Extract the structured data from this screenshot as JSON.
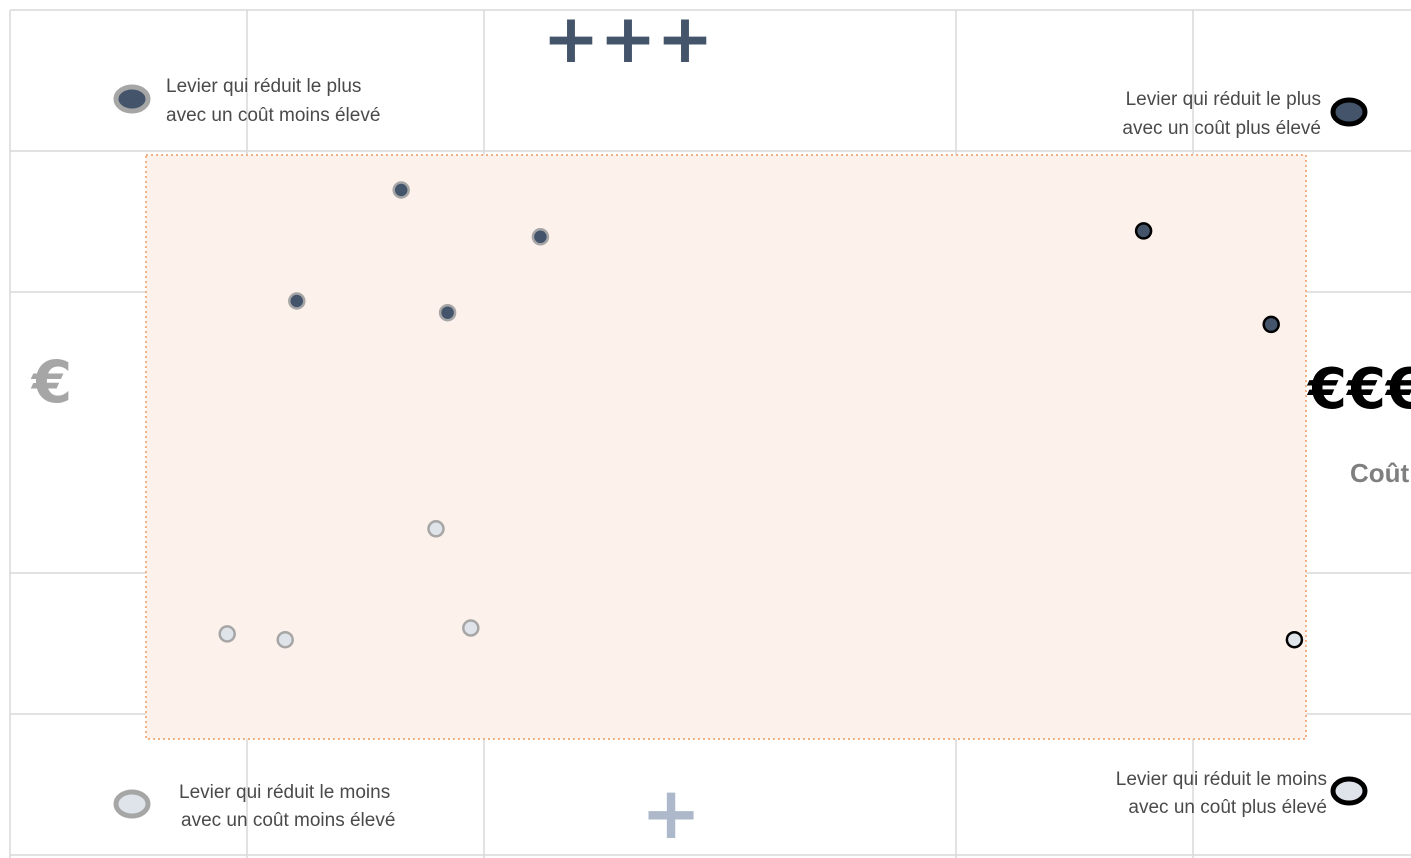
{
  "colors": {
    "dark_point": "#44546a",
    "light_point": "#dfe3ea",
    "zone_fill": "#fdf1ec",
    "zone_border": "#f4b183",
    "grid": "#d9d9d9",
    "x_axis_start": "#e6eaee",
    "x_axis_end": "#000000",
    "y_axis_top": "#8497b0",
    "y_axis_bottom": "#d6dce5",
    "plus_dark": "#44546a",
    "plus_light": "#adb9ca",
    "euro_light": "#a6a6a6",
    "euro_dark": "#000000"
  },
  "labels": {
    "high_impact": "+++",
    "low_impact": "+",
    "low_cost": "€",
    "high_cost": "€€€",
    "cost_axis": "Coût"
  },
  "legend": [
    {
      "line1": "Levier qui réduit le plus",
      "line2": "avec un coût moins élevé",
      "style": "dark-low-cost"
    },
    {
      "line1": "Levier qui réduit le plus",
      "line2": "avec un coût plus élevé",
      "style": "dark-high-cost"
    },
    {
      "line1": "Levier qui réduit le moins",
      "line2": "avec un coût moins élevé",
      "style": "light-low-cost"
    },
    {
      "line1": "Levier qui réduit le moins",
      "line2": "avec un coût plus élevé",
      "style": "light-high-cost"
    }
  ],
  "chart_data": {
    "type": "scatter",
    "x_axis": "Coût",
    "xlim": [
      0,
      10
    ],
    "ylim": [
      0,
      10
    ],
    "series": [
      {
        "style": "dark-low-cost",
        "points": [
          [
            2.2,
            9.4
          ],
          [
            1.3,
            7.5
          ],
          [
            2.6,
            7.3
          ],
          [
            3.4,
            8.6
          ]
        ]
      },
      {
        "style": "dark-high-cost",
        "points": [
          [
            8.6,
            8.7
          ],
          [
            9.7,
            7.1
          ]
        ]
      },
      {
        "style": "light-low-cost",
        "points": [
          [
            2.5,
            3.6
          ],
          [
            0.7,
            1.8
          ],
          [
            1.2,
            1.7
          ],
          [
            2.8,
            1.9
          ]
        ]
      },
      {
        "style": "light-high-cost",
        "points": [
          [
            9.9,
            1.7
          ]
        ]
      }
    ]
  }
}
